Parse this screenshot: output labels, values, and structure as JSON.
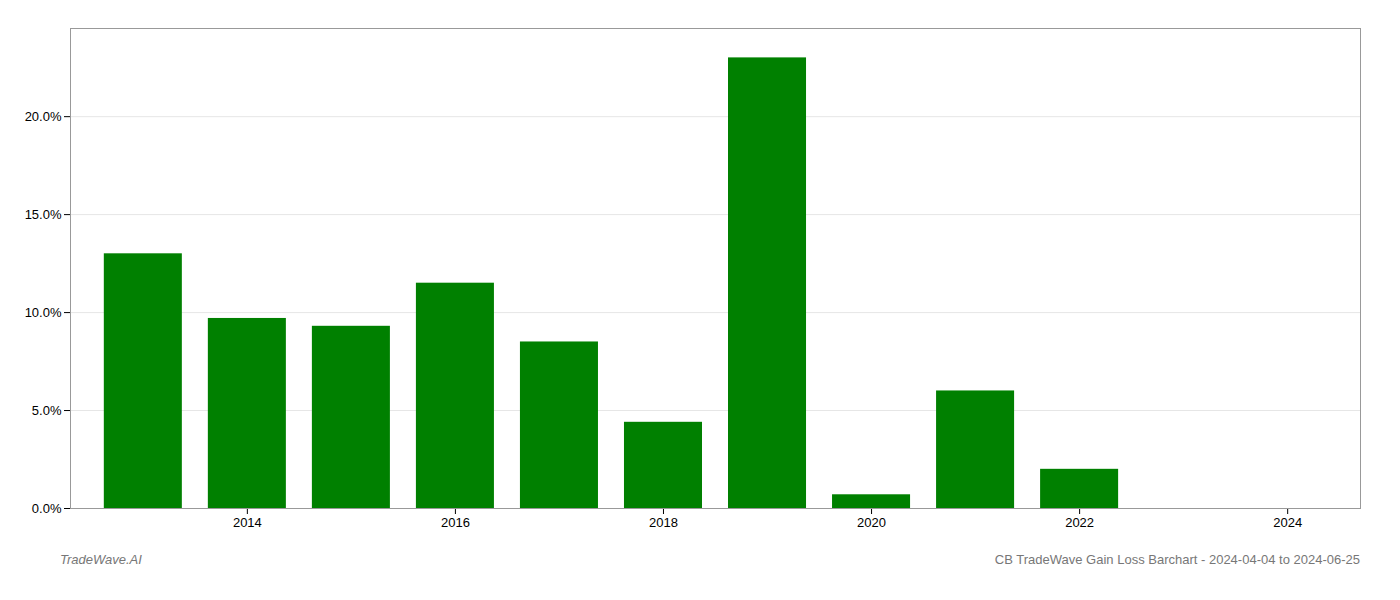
{
  "chart_data": {
    "type": "bar",
    "title": "CB TradeWave Gain Loss Barchart - 2024-04-04 to 2024-06-25",
    "annotations": [
      "TradeWave.AI"
    ],
    "x": [
      2013,
      2014,
      2015,
      2016,
      2017,
      2018,
      2019,
      2020,
      2021,
      2022,
      2023
    ],
    "values": [
      0.13,
      0.097,
      0.093,
      0.115,
      0.085,
      0.044,
      0.23,
      0.007,
      0.06,
      0.02,
      0.0
    ],
    "color": "#008000",
    "xlim": [
      2012.3,
      2024.7
    ],
    "xticks": [
      2014,
      2016,
      2018,
      2020,
      2022,
      2024
    ],
    "ylim": [
      0,
      0.245
    ],
    "yticks": [
      {
        "value": 0.0,
        "label": "0.0%"
      },
      {
        "value": 0.05,
        "label": "5.0%"
      },
      {
        "value": 0.1,
        "label": "10.0%"
      },
      {
        "value": 0.15,
        "label": "15.0%"
      },
      {
        "value": 0.2,
        "label": "20.0%"
      }
    ],
    "grid": true
  }
}
